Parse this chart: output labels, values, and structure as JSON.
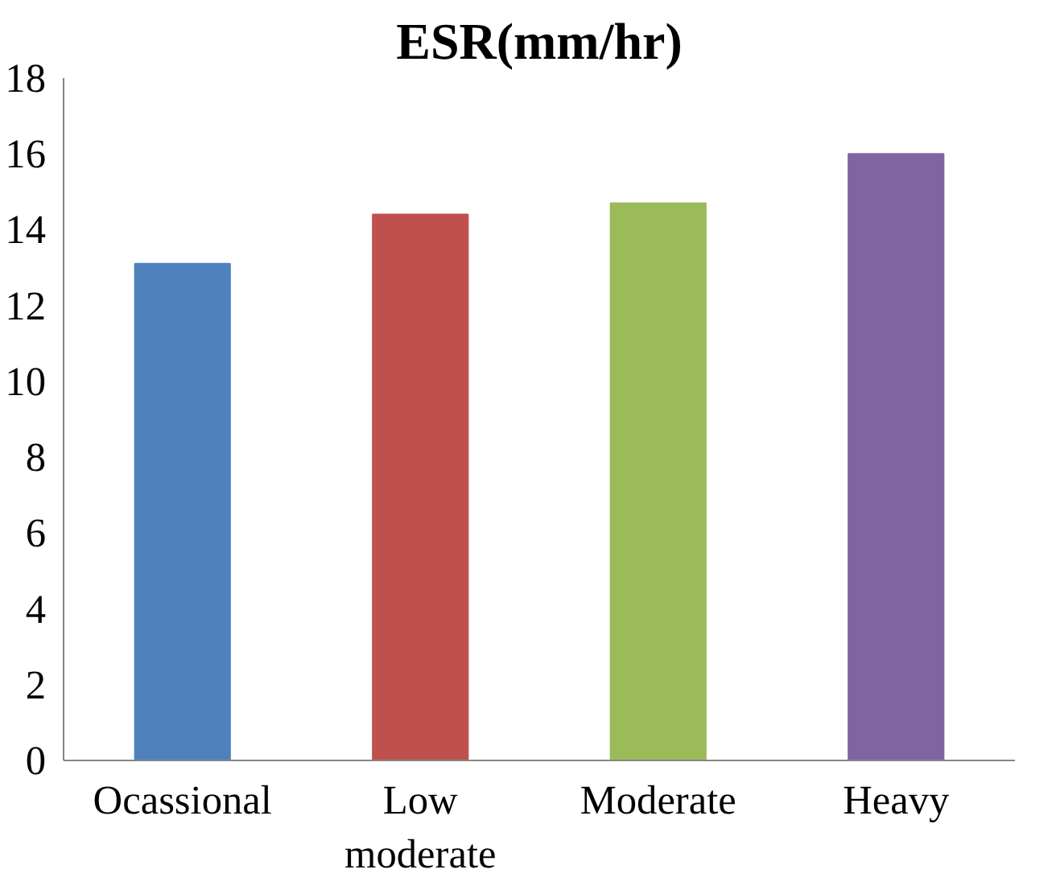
{
  "chart_data": {
    "type": "bar",
    "title": "ESR(mm/hr)",
    "categories": [
      "Ocassional",
      "Low moderate",
      "Moderate",
      "Heavy"
    ],
    "values": [
      13.1,
      14.4,
      14.7,
      16.0
    ],
    "colors": [
      "#4f81bd",
      "#c0504d",
      "#9bbb59",
      "#8064a2"
    ],
    "ylim": [
      0,
      18
    ],
    "yticks": [
      0,
      2,
      4,
      6,
      8,
      10,
      12,
      14,
      16,
      18
    ],
    "grid": false
  }
}
